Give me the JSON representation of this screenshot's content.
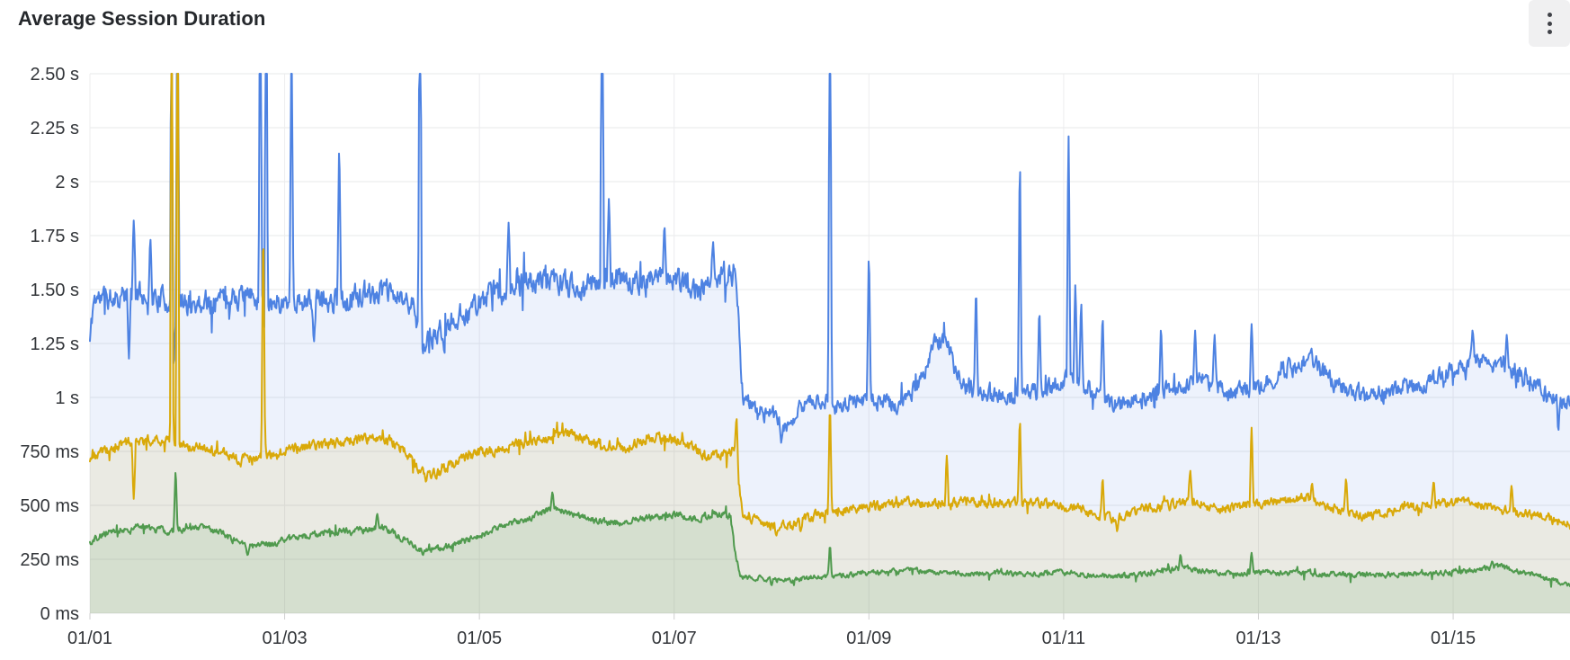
{
  "panel": {
    "title": "Average Session Duration",
    "menu_icon": "kebab-vertical"
  },
  "chart_data": {
    "type": "line",
    "title": "Average Session Duration",
    "legend": "none",
    "grid": true,
    "x_axis": {
      "tick_labels": [
        "01/01",
        "01/03",
        "01/05",
        "01/07",
        "01/09",
        "01/11",
        "01/13",
        "01/15"
      ],
      "tick_days": [
        0,
        2,
        4,
        6,
        8,
        10,
        12,
        14
      ],
      "range_days": [
        0,
        15.2
      ]
    },
    "y_axis": {
      "tick_labels": [
        "0 ms",
        "250 ms",
        "500 ms",
        "750 ms",
        "1 s",
        "1.25 s",
        "1.50 s",
        "1.75 s",
        "2 s",
        "2.25 s",
        "2.50 s"
      ],
      "tick_values_s": [
        0,
        0.25,
        0.5,
        0.75,
        1,
        1.25,
        1.5,
        1.75,
        2,
        2.25,
        2.5
      ],
      "range_s": [
        0,
        2.5
      ],
      "values_clip_at_max": true
    },
    "annotations": {
      "step_change": "all series drop sharply around 01/07 ~16:00 (day 6.67)",
      "baselines_s": {
        "blue": {
          "before": 1.47,
          "after": 1.0
        },
        "yellow": {
          "before": 0.78,
          "after": 0.48
        },
        "green": {
          "before": 0.39,
          "after": 0.18
        }
      }
    },
    "series": [
      {
        "id": "blue",
        "color": "#4d82e2",
        "fill": "rgba(77,130,226,0.10)",
        "width": 2,
        "noise": {
          "phi": 0.5,
          "sigma": 0.045,
          "burst": 0.05,
          "burst_amp": 0.11,
          "post_damp": 0.75,
          "damp_after_day": 6.68,
          "seed": 11
        },
        "anchors_day_seconds": [
          [
            0,
            1.26
          ],
          [
            0.04,
            1.46
          ],
          [
            0.5,
            1.48
          ],
          [
            1.0,
            1.43
          ],
          [
            1.5,
            1.47
          ],
          [
            2.0,
            1.44
          ],
          [
            2.5,
            1.45
          ],
          [
            3.0,
            1.49
          ],
          [
            3.3,
            1.44
          ],
          [
            3.45,
            1.24
          ],
          [
            3.6,
            1.3
          ],
          [
            3.8,
            1.38
          ],
          [
            4.1,
            1.47
          ],
          [
            4.4,
            1.52
          ],
          [
            4.7,
            1.55
          ],
          [
            5.0,
            1.51
          ],
          [
            5.3,
            1.55
          ],
          [
            5.6,
            1.53
          ],
          [
            5.9,
            1.57
          ],
          [
            6.2,
            1.5
          ],
          [
            6.45,
            1.54
          ],
          [
            6.6,
            1.6
          ],
          [
            6.64,
            1.58
          ],
          [
            6.7,
            1.0
          ],
          [
            6.85,
            0.94
          ],
          [
            7.05,
            0.9
          ],
          [
            7.15,
            0.86
          ],
          [
            7.3,
            0.96
          ],
          [
            7.5,
            0.99
          ],
          [
            7.7,
            0.96
          ],
          [
            8.0,
            1.0
          ],
          [
            8.3,
            0.96
          ],
          [
            8.55,
            1.08
          ],
          [
            8.68,
            1.27
          ],
          [
            8.8,
            1.25
          ],
          [
            8.95,
            1.05
          ],
          [
            9.2,
            1.02
          ],
          [
            9.5,
            1.0
          ],
          [
            9.8,
            1.03
          ],
          [
            10.0,
            1.09
          ],
          [
            10.25,
            1.04
          ],
          [
            10.5,
            0.96
          ],
          [
            10.8,
            1.0
          ],
          [
            11.1,
            1.03
          ],
          [
            11.4,
            1.09
          ],
          [
            11.7,
            1.02
          ],
          [
            12.0,
            1.05
          ],
          [
            12.3,
            1.13
          ],
          [
            12.55,
            1.17
          ],
          [
            12.8,
            1.06
          ],
          [
            13.1,
            1.0
          ],
          [
            13.4,
            1.03
          ],
          [
            13.7,
            1.07
          ],
          [
            14.0,
            1.13
          ],
          [
            14.25,
            1.17
          ],
          [
            14.5,
            1.14
          ],
          [
            14.8,
            1.09
          ],
          [
            15.0,
            1.0
          ],
          [
            15.19,
            0.97
          ]
        ],
        "spikes_day_seconds": [
          [
            0.45,
            1.82
          ],
          [
            0.62,
            1.73
          ],
          [
            0.84,
            3.2,
            0.018
          ],
          [
            0.9,
            3.2,
            0.018
          ],
          [
            1.75,
            3.2,
            0.018
          ],
          [
            1.81,
            3.2,
            0.018
          ],
          [
            2.07,
            2.62,
            0.02
          ],
          [
            2.56,
            2.13
          ],
          [
            3.39,
            3.2,
            0.02
          ],
          [
            4.3,
            1.81
          ],
          [
            5.26,
            3.2,
            0.02
          ],
          [
            5.33,
            1.92
          ],
          [
            5.9,
            1.79
          ],
          [
            6.4,
            1.72
          ],
          [
            7.6,
            3.0,
            0.02
          ],
          [
            8.0,
            1.63
          ],
          [
            9.1,
            1.48
          ],
          [
            9.55,
            2.05
          ],
          [
            9.75,
            1.39
          ],
          [
            10.05,
            2.21
          ],
          [
            10.12,
            1.52
          ],
          [
            10.18,
            1.43
          ],
          [
            10.4,
            1.36
          ],
          [
            11.0,
            1.31
          ],
          [
            11.35,
            1.31
          ],
          [
            11.55,
            1.29
          ],
          [
            11.93,
            1.34
          ],
          [
            14.2,
            1.31
          ],
          [
            14.55,
            1.29
          ],
          [
            0.4,
            1.18
          ],
          [
            0.86,
            1.15
          ],
          [
            2.3,
            1.26
          ],
          [
            7.1,
            0.79
          ],
          [
            15.08,
            0.85
          ]
        ]
      },
      {
        "id": "yellow",
        "color": "#d9a909",
        "fill": "rgba(217,169,9,0.10)",
        "width": 2,
        "noise": {
          "phi": 0.5,
          "sigma": 0.02,
          "burst": 0.03,
          "burst_amp": 0.05,
          "post_damp": 0.9,
          "damp_after_day": 6.68,
          "seed": 23
        },
        "anchors_day_seconds": [
          [
            0,
            0.72
          ],
          [
            0.3,
            0.78
          ],
          [
            0.7,
            0.81
          ],
          [
            1.0,
            0.78
          ],
          [
            1.3,
            0.75
          ],
          [
            1.55,
            0.71
          ],
          [
            1.8,
            0.73
          ],
          [
            2.1,
            0.76
          ],
          [
            2.4,
            0.78
          ],
          [
            2.7,
            0.8
          ],
          [
            3.0,
            0.82
          ],
          [
            3.2,
            0.77
          ],
          [
            3.4,
            0.65
          ],
          [
            3.55,
            0.64
          ],
          [
            3.75,
            0.7
          ],
          [
            4.0,
            0.74
          ],
          [
            4.3,
            0.77
          ],
          [
            4.6,
            0.81
          ],
          [
            4.9,
            0.84
          ],
          [
            5.2,
            0.79
          ],
          [
            5.5,
            0.77
          ],
          [
            5.8,
            0.82
          ],
          [
            6.1,
            0.79
          ],
          [
            6.35,
            0.73
          ],
          [
            6.55,
            0.73
          ],
          [
            6.63,
            0.77
          ],
          [
            6.7,
            0.45
          ],
          [
            6.85,
            0.43
          ],
          [
            7.05,
            0.4
          ],
          [
            7.25,
            0.42
          ],
          [
            7.5,
            0.46
          ],
          [
            7.8,
            0.48
          ],
          [
            8.1,
            0.5
          ],
          [
            8.4,
            0.52
          ],
          [
            8.7,
            0.5
          ],
          [
            9.0,
            0.52
          ],
          [
            9.3,
            0.5
          ],
          [
            9.6,
            0.52
          ],
          [
            9.9,
            0.5
          ],
          [
            10.2,
            0.48
          ],
          [
            10.5,
            0.44
          ],
          [
            10.8,
            0.48
          ],
          [
            11.1,
            0.5
          ],
          [
            11.35,
            0.52
          ],
          [
            11.6,
            0.48
          ],
          [
            11.9,
            0.5
          ],
          [
            12.2,
            0.52
          ],
          [
            12.5,
            0.53
          ],
          [
            12.8,
            0.48
          ],
          [
            13.1,
            0.45
          ],
          [
            13.4,
            0.47
          ],
          [
            13.7,
            0.5
          ],
          [
            14.0,
            0.52
          ],
          [
            14.3,
            0.5
          ],
          [
            14.6,
            0.47
          ],
          [
            14.9,
            0.45
          ],
          [
            15.19,
            0.41
          ]
        ],
        "spikes_day_seconds": [
          [
            0.45,
            0.53
          ],
          [
            0.84,
            3.2,
            0.018
          ],
          [
            0.9,
            3.2,
            0.018
          ],
          [
            1.78,
            1.73
          ],
          [
            6.64,
            0.9
          ],
          [
            7.6,
            0.94
          ],
          [
            8.8,
            0.73
          ],
          [
            9.55,
            0.88
          ],
          [
            10.4,
            0.62
          ],
          [
            11.3,
            0.66
          ],
          [
            11.93,
            0.86
          ],
          [
            12.55,
            0.6
          ],
          [
            12.9,
            0.62
          ],
          [
            13.8,
            0.61
          ],
          [
            14.6,
            0.59
          ],
          [
            3.45,
            0.61
          ],
          [
            7.05,
            0.36
          ],
          [
            7.3,
            0.38
          ],
          [
            10.55,
            0.38
          ]
        ]
      },
      {
        "id": "green",
        "color": "#509a4e",
        "fill": "rgba(80,154,78,0.13)",
        "width": 2,
        "noise": {
          "phi": 0.5,
          "sigma": 0.013,
          "burst": 0.02,
          "burst_amp": 0.035,
          "post_damp": 0.8,
          "damp_after_day": 6.68,
          "seed": 37
        },
        "anchors_day_seconds": [
          [
            0,
            0.33
          ],
          [
            0.2,
            0.38
          ],
          [
            0.5,
            0.4
          ],
          [
            0.8,
            0.38
          ],
          [
            1.1,
            0.4
          ],
          [
            1.35,
            0.37
          ],
          [
            1.6,
            0.31
          ],
          [
            1.85,
            0.32
          ],
          [
            2.1,
            0.35
          ],
          [
            2.4,
            0.37
          ],
          [
            2.7,
            0.38
          ],
          [
            3.0,
            0.4
          ],
          [
            3.2,
            0.35
          ],
          [
            3.4,
            0.29
          ],
          [
            3.6,
            0.3
          ],
          [
            3.9,
            0.34
          ],
          [
            4.2,
            0.4
          ],
          [
            4.5,
            0.44
          ],
          [
            4.75,
            0.49
          ],
          [
            4.95,
            0.46
          ],
          [
            5.15,
            0.43
          ],
          [
            5.4,
            0.42
          ],
          [
            5.7,
            0.44
          ],
          [
            6.0,
            0.46
          ],
          [
            6.2,
            0.44
          ],
          [
            6.45,
            0.46
          ],
          [
            6.58,
            0.45
          ],
          [
            6.62,
            0.3
          ],
          [
            6.68,
            0.17
          ],
          [
            6.9,
            0.16
          ],
          [
            7.2,
            0.15
          ],
          [
            7.5,
            0.17
          ],
          [
            7.8,
            0.18
          ],
          [
            8.1,
            0.19
          ],
          [
            8.4,
            0.2
          ],
          [
            8.7,
            0.19
          ],
          [
            9.0,
            0.18
          ],
          [
            9.3,
            0.19
          ],
          [
            9.6,
            0.18
          ],
          [
            9.9,
            0.19
          ],
          [
            10.2,
            0.18
          ],
          [
            10.5,
            0.17
          ],
          [
            10.8,
            0.18
          ],
          [
            11.05,
            0.2
          ],
          [
            11.25,
            0.21
          ],
          [
            11.5,
            0.19
          ],
          [
            11.8,
            0.18
          ],
          [
            12.1,
            0.19
          ],
          [
            12.4,
            0.19
          ],
          [
            12.7,
            0.18
          ],
          [
            13.0,
            0.18
          ],
          [
            13.3,
            0.18
          ],
          [
            13.6,
            0.18
          ],
          [
            13.9,
            0.19
          ],
          [
            14.2,
            0.2
          ],
          [
            14.45,
            0.22
          ],
          [
            14.7,
            0.19
          ],
          [
            15.0,
            0.16
          ],
          [
            15.19,
            0.13
          ]
        ],
        "spikes_day_seconds": [
          [
            0.88,
            0.65
          ],
          [
            2.95,
            0.46
          ],
          [
            4.75,
            0.56
          ],
          [
            7.6,
            0.31
          ],
          [
            11.2,
            0.27
          ],
          [
            11.93,
            0.28
          ],
          [
            14.4,
            0.24
          ],
          [
            1.62,
            0.27
          ],
          [
            3.42,
            0.27
          ],
          [
            7.0,
            0.13
          ]
        ]
      }
    ],
    "style": {
      "grid_color_h": "#e7e8ea",
      "grid_color_v": "#ececee",
      "tick_stub_color": "#cfcfcf",
      "label_color": "#33363a",
      "background": "#ffffff"
    }
  }
}
